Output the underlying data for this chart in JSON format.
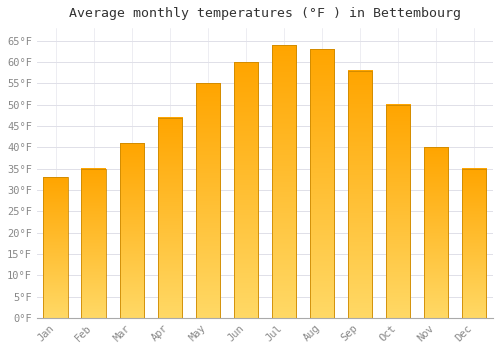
{
  "title": "Average monthly temperatures (°F ) in Bettembourg",
  "months": [
    "Jan",
    "Feb",
    "Mar",
    "Apr",
    "May",
    "Jun",
    "Jul",
    "Aug",
    "Sep",
    "Oct",
    "Nov",
    "Dec"
  ],
  "values": [
    33,
    35,
    41,
    47,
    55,
    60,
    64,
    63,
    58,
    50,
    40,
    35
  ],
  "bar_color_top": "#FFD966",
  "bar_color_bottom": "#FFA500",
  "bar_edge_color": "#CC8800",
  "background_color": "#FFFFFF",
  "grid_color": "#E0E0E8",
  "ylim": [
    0,
    68
  ],
  "yticks": [
    0,
    5,
    10,
    15,
    20,
    25,
    30,
    35,
    40,
    45,
    50,
    55,
    60,
    65
  ],
  "title_fontsize": 9.5,
  "tick_fontsize": 7.5,
  "tick_color": "#888888",
  "title_color": "#333333",
  "figsize": [
    5.0,
    3.5
  ],
  "dpi": 100
}
